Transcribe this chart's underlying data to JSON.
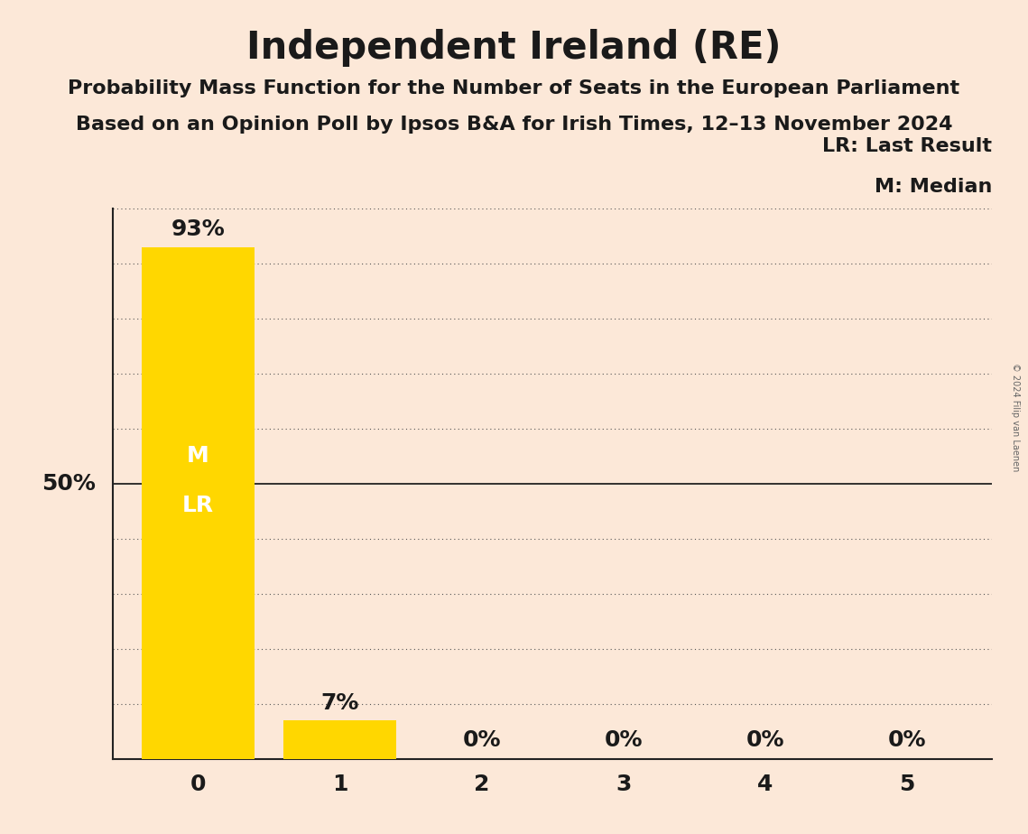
{
  "title": "Independent Ireland (RE)",
  "subtitle1": "Probability Mass Function for the Number of Seats in the European Parliament",
  "subtitle2": "Based on an Opinion Poll by Ipsos B&A for Irish Times, 12–13 November 2024",
  "categories": [
    0,
    1,
    2,
    3,
    4,
    5
  ],
  "values": [
    93,
    7,
    0,
    0,
    0,
    0
  ],
  "bar_color": "#FFD700",
  "background_color": "#fce8d8",
  "ylabel_text": "50%",
  "ylabel_value": 50,
  "bar_labels": [
    "93%",
    "7%",
    "0%",
    "0%",
    "0%",
    "0%"
  ],
  "legend_lr": "LR: Last Result",
  "legend_m": "M: Median",
  "copyright": "© 2024 Filip van Laenen",
  "title_fontsize": 30,
  "subtitle_fontsize": 16,
  "bar_label_fontsize": 18,
  "axis_label_fontsize": 18,
  "legend_fontsize": 16,
  "ylabel_fontsize": 18,
  "inside_label_fontsize": 18,
  "ylim": [
    0,
    100
  ],
  "grid_ticks": [
    10,
    20,
    30,
    40,
    50,
    60,
    70,
    80,
    90,
    100
  ]
}
